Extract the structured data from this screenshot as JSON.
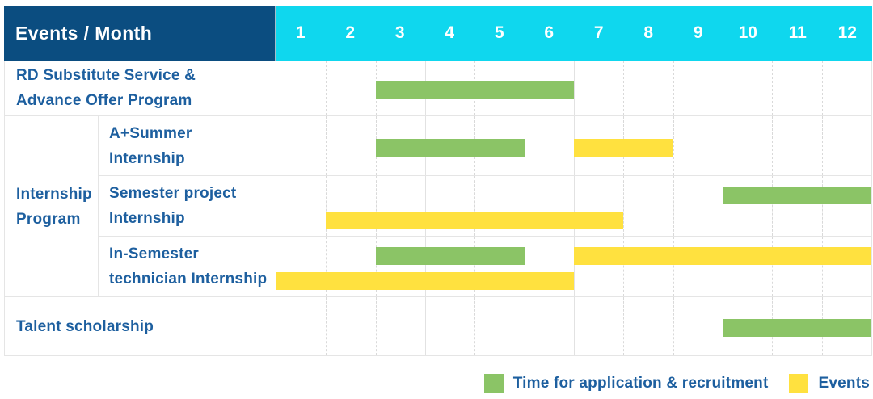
{
  "header": {
    "corner_label": "Events / Month"
  },
  "chart_data": {
    "type": "bar",
    "subtype": "gantt-schedule",
    "title": "Events / Month",
    "x_axis": {
      "label": "Month",
      "ticks": [
        "1",
        "2",
        "3",
        "4",
        "5",
        "6",
        "7",
        "8",
        "9",
        "10",
        "11",
        "12"
      ],
      "range": [
        1,
        12
      ]
    },
    "grid": true,
    "legend_position": "bottom-right",
    "series_legend": [
      {
        "key": "application",
        "name": "Time for application & recruitment",
        "color": "#8bc466"
      },
      {
        "key": "event",
        "name": "Events",
        "color": "#ffe13f"
      }
    ],
    "group_label": "Internship Program",
    "group_label_lines": [
      "Internship",
      "Program"
    ],
    "rows": [
      {
        "group": "",
        "label": "RD Substitute Service & Advance Offer Program",
        "label_lines": [
          "RD Substitute Service &",
          "Advance Offer Program"
        ],
        "bars": [
          {
            "series": "application",
            "start_month": 3,
            "end_month": 6,
            "lane": 0
          }
        ]
      },
      {
        "group": "Internship Program",
        "label": "A+Summer Internship",
        "label_lines": [
          "A+Summer",
          "Internship"
        ],
        "bars": [
          {
            "series": "application",
            "start_month": 3,
            "end_month": 5,
            "lane": 0
          },
          {
            "series": "event",
            "start_month": 7,
            "end_month": 8,
            "lane": 0
          }
        ]
      },
      {
        "group": "Internship Program",
        "label": "Semester project Internship",
        "label_lines": [
          "Semester project",
          "Internship"
        ],
        "bars": [
          {
            "series": "application",
            "start_month": 10,
            "end_month": 12,
            "lane": 0
          },
          {
            "series": "event",
            "start_month": 2,
            "end_month": 7,
            "lane": 1
          }
        ]
      },
      {
        "group": "Internship Program",
        "label": "In-Semester technician Internship",
        "label_lines": [
          "In-Semester",
          "technician Internship"
        ],
        "bars": [
          {
            "series": "application",
            "start_month": 3,
            "end_month": 5,
            "lane": 0
          },
          {
            "series": "event",
            "start_month": 7,
            "end_month": 12,
            "lane": 0
          },
          {
            "series": "event",
            "start_month": 1,
            "end_month": 6,
            "lane": 1
          }
        ]
      },
      {
        "group": "",
        "label": "Talent scholarship",
        "label_lines": [
          "Talent scholarship"
        ],
        "bars": [
          {
            "series": "application",
            "start_month": 10,
            "end_month": 12,
            "lane": 0
          }
        ]
      }
    ]
  },
  "legend": {
    "application_label": "Time for application & recruitment",
    "events_label": "Events"
  },
  "colors": {
    "header_navy": "#0b4d80",
    "header_cyan": "#0fd7ee",
    "application_green": "#8bc466",
    "event_yellow": "#ffe13f",
    "label_blue": "#1d5f9f",
    "grid_line": "#e5e5e5"
  }
}
